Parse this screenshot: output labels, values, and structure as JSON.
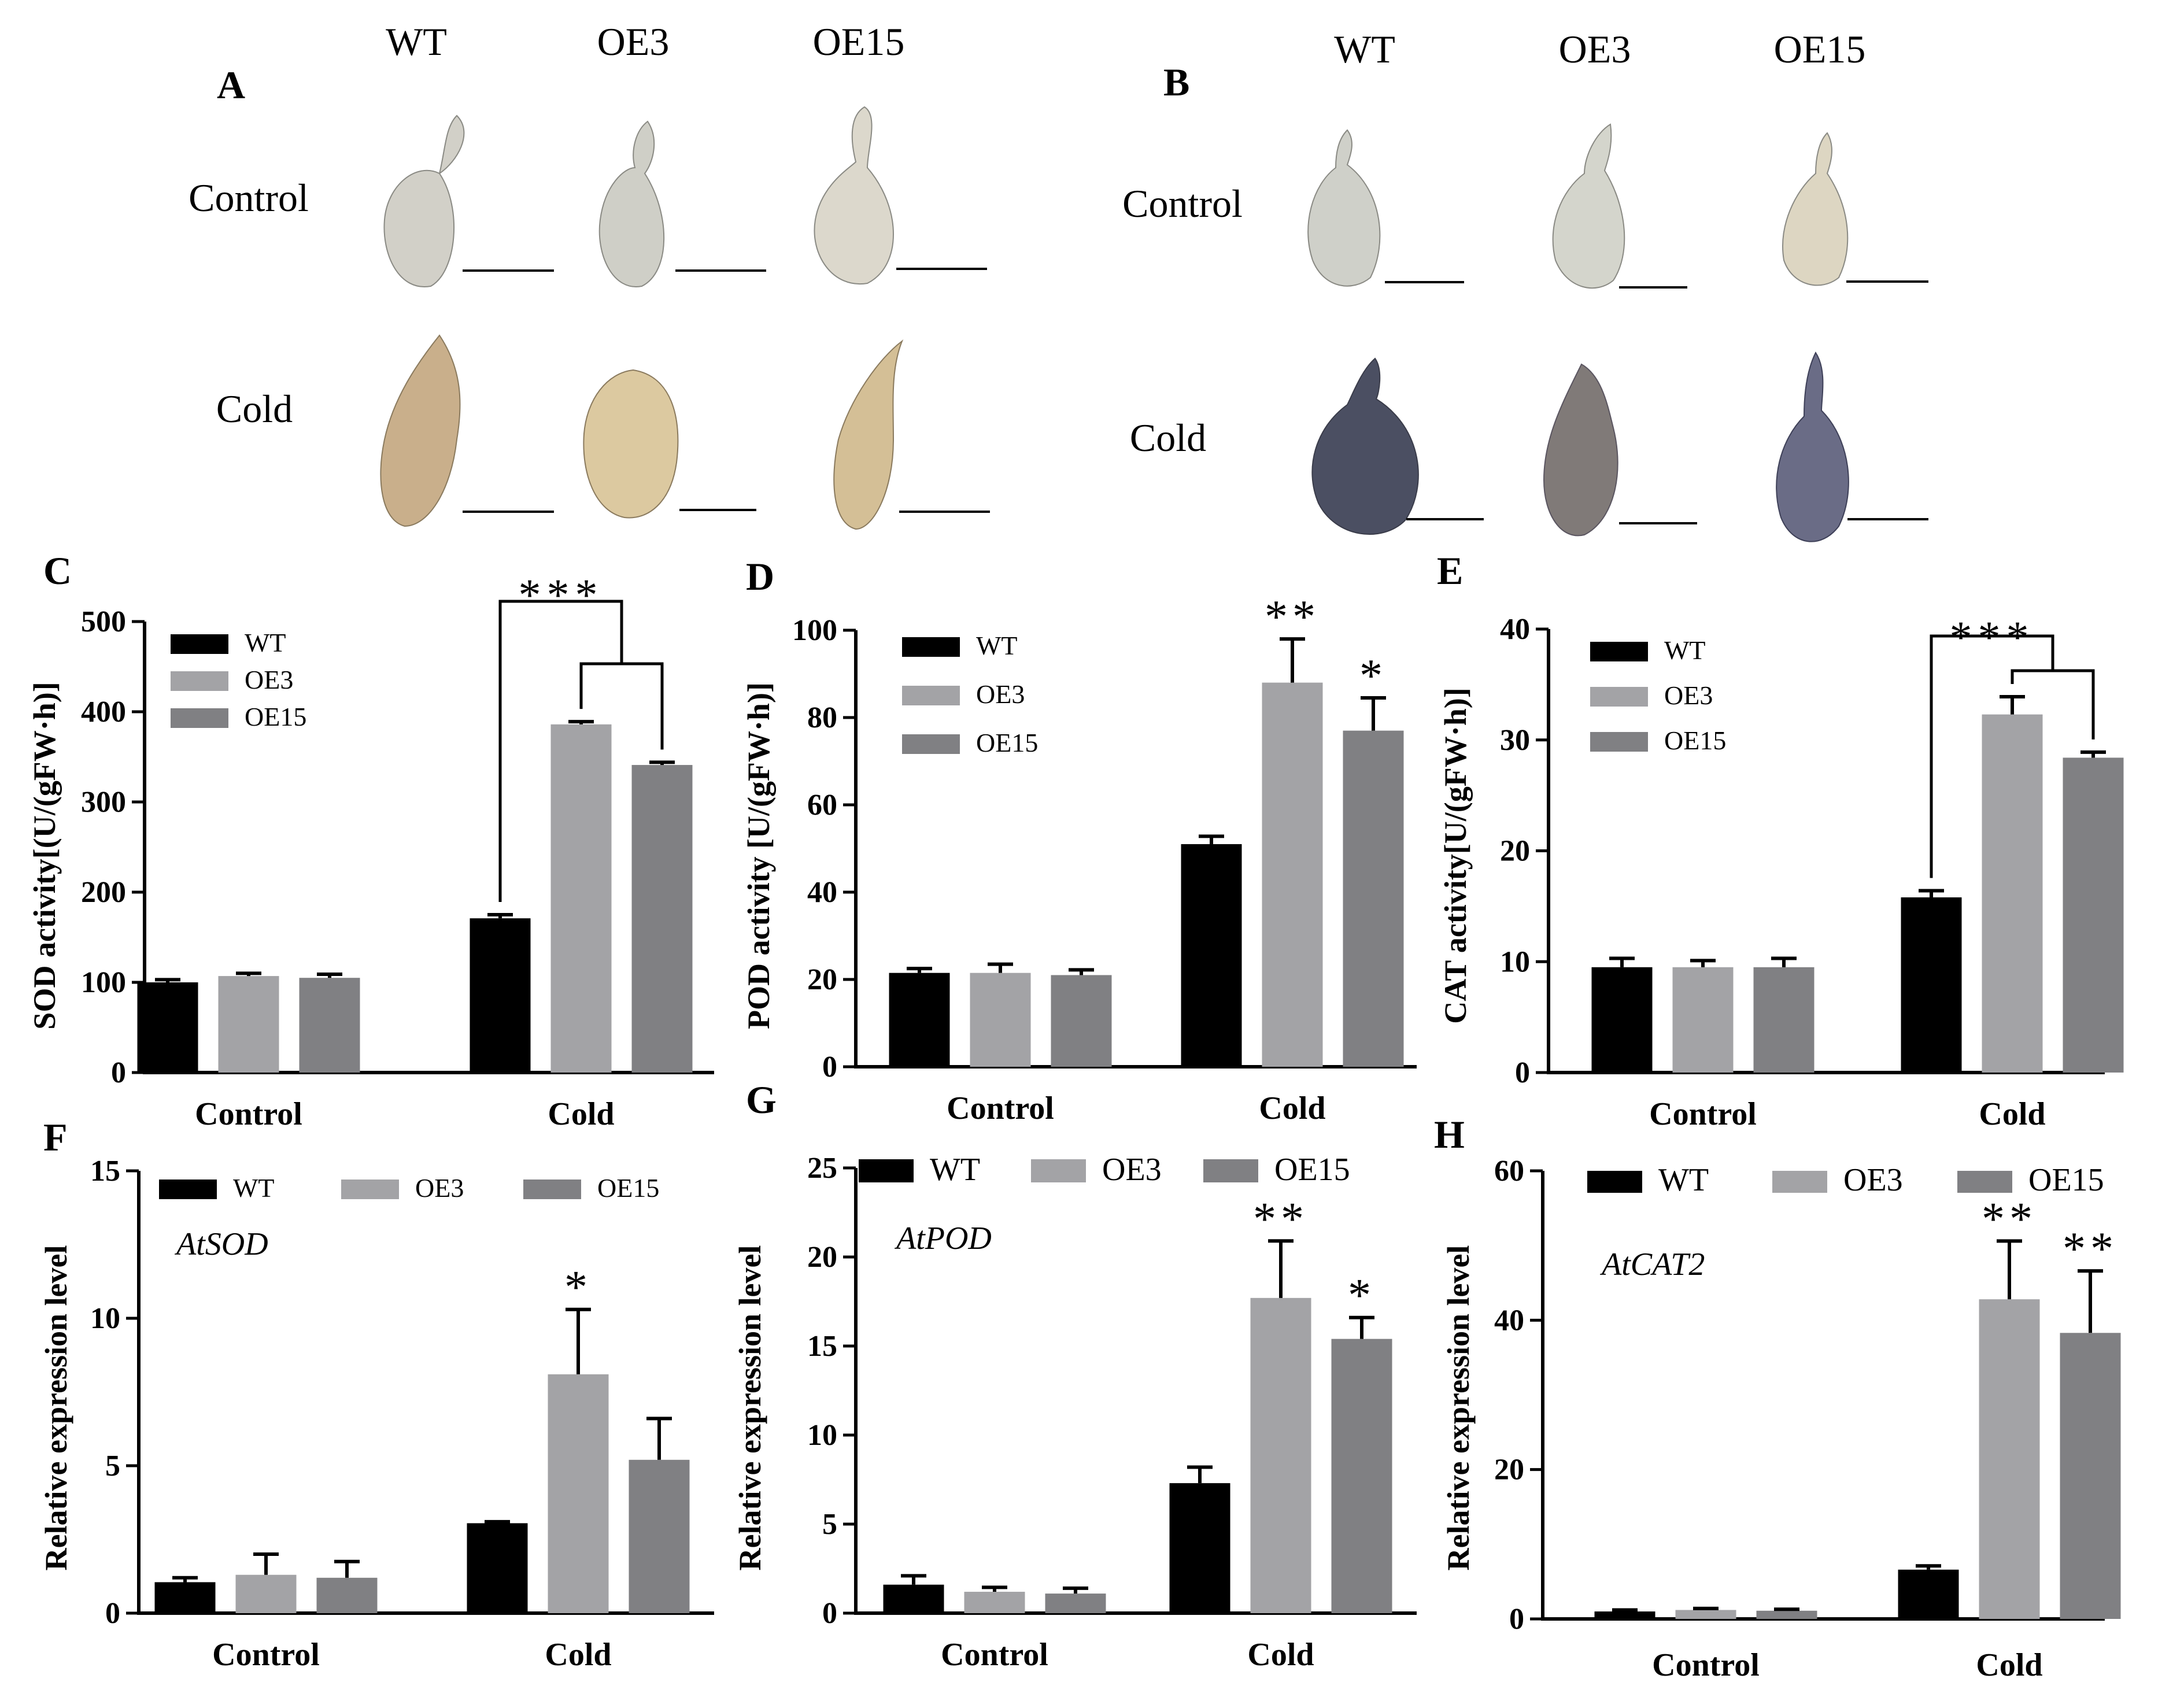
{
  "panel_letters": [
    "A",
    "B",
    "C",
    "D",
    "E",
    "F",
    "G",
    "H"
  ],
  "photo_panels": [
    {
      "letter": "A",
      "columns": [
        "WT",
        "OE3",
        "OE15"
      ],
      "rows": [
        "Control",
        "Cold"
      ],
      "colors": {
        "Control": [
          "#d2d0c8",
          "#cfcfc7",
          "#dcd8cc"
        ],
        "Cold": [
          "#c9af8b",
          "#dcc9a0",
          "#d4bf96"
        ]
      }
    },
    {
      "letter": "B",
      "columns": [
        "WT",
        "OE3",
        "OE15"
      ],
      "rows": [
        "Control",
        "Cold"
      ],
      "colors": {
        "Control": [
          "#cfd0c9",
          "#d4d5cc",
          "#ddd6c2"
        ],
        "Cold": [
          "#4b4f62",
          "#807a78",
          "#6a6c86"
        ]
      }
    }
  ],
  "chart_data": [
    {
      "id": "C",
      "type": "bar",
      "ylabel": "SOD activity[(U/(gFW·h)]",
      "categories": [
        "Control",
        "Cold"
      ],
      "ylim": [
        0,
        500
      ],
      "yticks": [
        0,
        100,
        200,
        300,
        400,
        500
      ],
      "series": [
        {
          "name": "WT",
          "color": "#000000",
          "values": [
            100,
            171
          ],
          "errors": [
            3,
            4
          ]
        },
        {
          "name": "OE3",
          "color": "#a3a3a6",
          "values": [
            107,
            386
          ],
          "errors": [
            3,
            3
          ]
        },
        {
          "name": "OE15",
          "color": "#808083",
          "values": [
            105,
            341
          ],
          "errors": [
            4,
            3
          ]
        }
      ],
      "significance": [
        {
          "category": 1,
          "type": "bracket3",
          "label": "***"
        }
      ],
      "legend_layout": "vertical"
    },
    {
      "id": "D",
      "type": "bar",
      "ylabel": "POD activity [U/(gFW·h)]",
      "categories": [
        "Control",
        "Cold"
      ],
      "ylim": [
        0,
        100
      ],
      "yticks": [
        0,
        20,
        40,
        60,
        80,
        100
      ],
      "series": [
        {
          "name": "WT",
          "color": "#000000",
          "values": [
            21.5,
            51
          ],
          "errors": [
            1,
            1.8
          ]
        },
        {
          "name": "OE3",
          "color": "#a3a3a6",
          "values": [
            21.5,
            88
          ],
          "errors": [
            2,
            10
          ]
        },
        {
          "name": "OE15",
          "color": "#808083",
          "values": [
            21,
            77
          ],
          "errors": [
            1.2,
            7.5
          ]
        }
      ],
      "significance": [
        {
          "category": 1,
          "series": 1,
          "label": "**"
        },
        {
          "category": 1,
          "series": 2,
          "label": "*"
        }
      ],
      "legend_layout": "vertical"
    },
    {
      "id": "E",
      "type": "bar",
      "ylabel": "CAT activity[U/(gFW·h)]",
      "categories": [
        "Control",
        "Cold"
      ],
      "ylim": [
        0,
        40
      ],
      "yticks": [
        0,
        10,
        20,
        30,
        40
      ],
      "series": [
        {
          "name": "WT",
          "color": "#000000",
          "values": [
            9.5,
            15.8
          ],
          "errors": [
            0.8,
            0.6
          ]
        },
        {
          "name": "OE3",
          "color": "#a3a3a6",
          "values": [
            9.5,
            32.3
          ],
          "errors": [
            0.6,
            1.6
          ]
        },
        {
          "name": "OE15",
          "color": "#808083",
          "values": [
            9.5,
            28.4
          ],
          "errors": [
            0.8,
            0.5
          ]
        }
      ],
      "significance": [
        {
          "category": 1,
          "type": "bracket3",
          "label": "***"
        }
      ],
      "legend_layout": "vertical"
    },
    {
      "id": "F",
      "type": "bar",
      "ylabel": "Relative expression level",
      "gene": "AtSOD",
      "categories": [
        "Control",
        "Cold"
      ],
      "ylim": [
        0,
        15
      ],
      "yticks": [
        0,
        5,
        10,
        15
      ],
      "series": [
        {
          "name": "WT",
          "color": "#000000",
          "values": [
            1.05,
            3.05
          ],
          "errors": [
            0.15,
            0.05
          ]
        },
        {
          "name": "OE3",
          "color": "#a3a3a6",
          "values": [
            1.3,
            8.1
          ],
          "errors": [
            0.7,
            2.2
          ]
        },
        {
          "name": "OE15",
          "color": "#808083",
          "values": [
            1.2,
            5.2
          ],
          "errors": [
            0.55,
            1.4
          ]
        }
      ],
      "significance": [
        {
          "category": 1,
          "series": 1,
          "label": "*"
        }
      ],
      "legend_layout": "horizontal"
    },
    {
      "id": "G",
      "type": "bar",
      "ylabel": "Relative expression level",
      "gene": "AtPOD",
      "categories": [
        "Control",
        "Cold"
      ],
      "ylim": [
        0,
        25
      ],
      "yticks": [
        0,
        5,
        10,
        15,
        20,
        25
      ],
      "series": [
        {
          "name": "WT",
          "color": "#000000",
          "values": [
            1.6,
            7.3
          ],
          "errors": [
            0.5,
            0.9
          ]
        },
        {
          "name": "OE3",
          "color": "#a3a3a6",
          "values": [
            1.2,
            17.7
          ],
          "errors": [
            0.25,
            3.2
          ]
        },
        {
          "name": "OE15",
          "color": "#808083",
          "values": [
            1.1,
            15.4
          ],
          "errors": [
            0.3,
            1.2
          ]
        }
      ],
      "significance": [
        {
          "category": 1,
          "series": 1,
          "label": "**"
        },
        {
          "category": 1,
          "series": 2,
          "label": "*"
        }
      ],
      "legend_layout": "horizontal"
    },
    {
      "id": "H",
      "type": "bar",
      "ylabel": "Relative expression level",
      "gene": "AtCAT2",
      "categories": [
        "Control",
        "Cold"
      ],
      "ylim": [
        0,
        60
      ],
      "yticks": [
        0,
        20,
        40,
        60
      ],
      "series": [
        {
          "name": "WT",
          "color": "#000000",
          "values": [
            1,
            6.6
          ],
          "errors": [
            0.2,
            0.5
          ]
        },
        {
          "name": "OE3",
          "color": "#a3a3a6",
          "values": [
            1.2,
            42.8
          ],
          "errors": [
            0.2,
            7.8
          ]
        },
        {
          "name": "OE15",
          "color": "#808083",
          "values": [
            1.1,
            38.3
          ],
          "errors": [
            0.2,
            8.3
          ]
        }
      ],
      "significance": [
        {
          "category": 1,
          "series": 1,
          "label": "**"
        },
        {
          "category": 1,
          "series": 2,
          "label": "**"
        }
      ],
      "legend_layout": "horizontal"
    }
  ]
}
